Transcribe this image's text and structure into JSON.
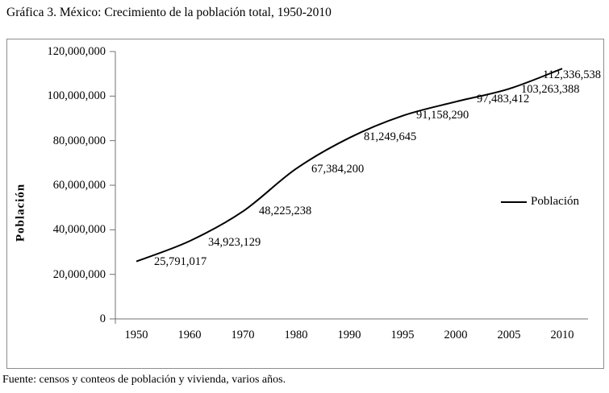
{
  "title": "Gráfica 3. México: Crecimiento de la población total, 1950-2010",
  "source": "Fuente: censos y conteos de población y vivienda, varios años.",
  "colors": {
    "background": "#ffffff",
    "text": "#000000",
    "axis": "#707070",
    "frame_border": "#8c8c8c",
    "series_line": "#000000"
  },
  "chart_data": {
    "type": "line",
    "title": "Gráfica 3. México: Crecimiento de la población total, 1950-2010",
    "xlabel": "",
    "ylabel": "Población",
    "categories": [
      "1950",
      "1960",
      "1970",
      "1980",
      "1990",
      "1995",
      "2000",
      "2005",
      "2010"
    ],
    "series": [
      {
        "name": "Población",
        "values": [
          25791017,
          34923129,
          48225238,
          67384200,
          81249645,
          91158290,
          97483412,
          103263388,
          112336538
        ],
        "labels": [
          "25,791,017",
          "34,923,129",
          "48,225,238",
          "67,384,200",
          "81,249,645",
          "91,158,290",
          "97,483,412",
          "103,263,388",
          "112,336,538"
        ],
        "color": "#000000",
        "smooth": true
      }
    ],
    "ylim": [
      0,
      120000000
    ],
    "ytick_values": [
      0,
      20000000,
      40000000,
      60000000,
      80000000,
      100000000,
      120000000
    ],
    "ytick_labels": [
      "0",
      "20,000,000",
      "40,000,000",
      "60,000,000",
      "80,000,000",
      "100,000,000",
      "120,000,000"
    ],
    "grid": false,
    "legend": {
      "position": "right-middle",
      "entries": [
        "Población"
      ]
    }
  }
}
